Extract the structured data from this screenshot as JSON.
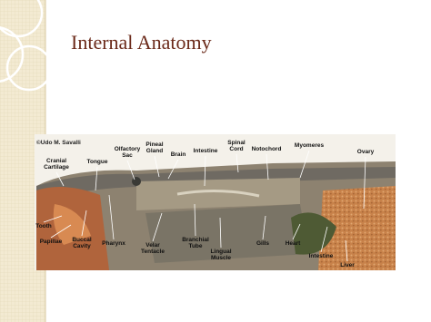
{
  "title": "Internal Anatomy",
  "figure": {
    "credit": "©Udo M. Savalli",
    "labels": [
      {
        "lines": [
          "Cranial",
          "Cartilage"
        ]
      },
      {
        "lines": [
          "Tongue"
        ]
      },
      {
        "lines": [
          "Olfactory",
          "Sac"
        ]
      },
      {
        "lines": [
          "Pineal",
          "Gland"
        ]
      },
      {
        "lines": [
          "Brain"
        ]
      },
      {
        "lines": [
          "Intestine"
        ]
      },
      {
        "lines": [
          "Spinal",
          "Cord"
        ]
      },
      {
        "lines": [
          "Notochord"
        ]
      },
      {
        "lines": [
          "Myomeres"
        ]
      },
      {
        "lines": [
          "Ovary"
        ]
      },
      {
        "lines": [
          "Tooth"
        ]
      },
      {
        "lines": [
          "Papillae"
        ]
      },
      {
        "lines": [
          "Buccal",
          "Cavity"
        ]
      },
      {
        "lines": [
          "Pharynx"
        ]
      },
      {
        "lines": [
          "Velar",
          "Tentacle"
        ]
      },
      {
        "lines": [
          "Branchial",
          "Tube"
        ]
      },
      {
        "lines": [
          "Lingual",
          "Muscle"
        ]
      },
      {
        "lines": [
          "Gills"
        ]
      },
      {
        "lines": [
          "Heart"
        ]
      },
      {
        "lines": [
          "Intestine"
        ]
      },
      {
        "lines": [
          "Liver"
        ]
      }
    ]
  }
}
